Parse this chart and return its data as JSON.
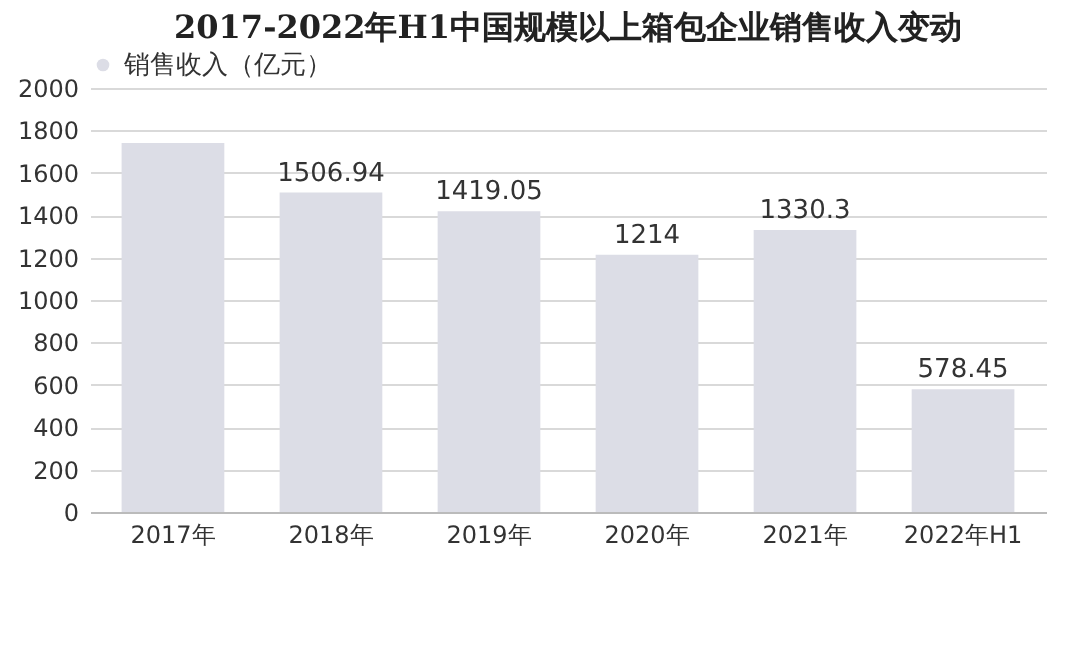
{
  "chart_data": {
    "type": "bar",
    "title": "2017-2022年H1中国规模以上箱包企业销售收入变动",
    "categories": [
      "2017年",
      "2018年",
      "2019年",
      "2020年",
      "2021年",
      "2022年H1"
    ],
    "series": [
      {
        "name": "销售收入（亿元）",
        "color": "#dcdde6",
        "values": [
          1740,
          1506.94,
          1419.05,
          1214,
          1330.3,
          578.45
        ],
        "value_labels": [
          null,
          "1506.94",
          "1419.05",
          "1214",
          "1330.3",
          "578.45"
        ]
      }
    ],
    "ylim": [
      0,
      2000
    ],
    "yticks": [
      0,
      200,
      400,
      600,
      800,
      1000,
      1200,
      1400,
      1600,
      1800,
      2000
    ],
    "grid": "y",
    "legend": "top"
  }
}
